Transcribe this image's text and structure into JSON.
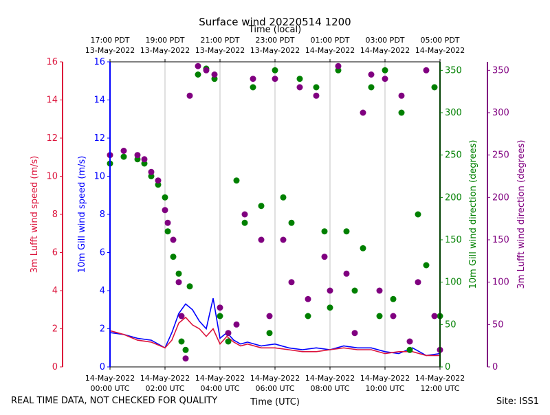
{
  "chart_data": {
    "type": "scatter",
    "title": "Surface wind 20220514 1200",
    "top_axis_label": "Time (local)",
    "xlabel": "Time (UTC)",
    "footer_left": "REAL TIME DATA, NOT CHECKED FOR QUALITY",
    "footer_right": "Site: ISS1",
    "x_range_hours_utc": [
      0,
      12
    ],
    "bottom_ticks": [
      {
        "h": 0,
        "l1": "14-May-2022",
        "l2": "00:00 UTC"
      },
      {
        "h": 2,
        "l1": "14-May-2022",
        "l2": "02:00 UTC"
      },
      {
        "h": 4,
        "l1": "14-May-2022",
        "l2": "04:00 UTC"
      },
      {
        "h": 6,
        "l1": "14-May-2022",
        "l2": "06:00 UTC"
      },
      {
        "h": 8,
        "l1": "14-May-2022",
        "l2": "08:00 UTC"
      },
      {
        "h": 10,
        "l1": "14-May-2022",
        "l2": "10:00 UTC"
      },
      {
        "h": 12,
        "l1": "14-May-2022",
        "l2": "12:00 UTC"
      }
    ],
    "top_ticks": [
      {
        "h": 0,
        "l1": "17:00 PDT",
        "l2": "13-May-2022"
      },
      {
        "h": 2,
        "l1": "19:00 PDT",
        "l2": "13-May-2022"
      },
      {
        "h": 4,
        "l1": "21:00 PDT",
        "l2": "13-May-2022"
      },
      {
        "h": 6,
        "l1": "23:00 PDT",
        "l2": "13-May-2022"
      },
      {
        "h": 8,
        "l1": "01:00 PDT",
        "l2": "14-May-2022"
      },
      {
        "h": 10,
        "l1": "03:00 PDT",
        "l2": "14-May-2022"
      },
      {
        "h": 12,
        "l1": "05:00 PDT",
        "l2": "14-May-2022"
      }
    ],
    "axes": {
      "lufft_speed": {
        "label": "3m Lufft wind speed (m/s)",
        "color": "#dc143c",
        "range": [
          0,
          16
        ],
        "ticks": [
          0,
          2,
          4,
          6,
          8,
          10,
          12,
          14,
          16
        ]
      },
      "gill_speed": {
        "label": "10m Gill wind speed (m/s)",
        "color": "#0000ff",
        "range": [
          0,
          16
        ],
        "ticks": [
          0,
          2,
          4,
          6,
          8,
          10,
          12,
          14,
          16
        ]
      },
      "gill_dir": {
        "label": "10m Gill wind direction (degrees)",
        "color": "#008000",
        "range": [
          0,
          360
        ],
        "ticks": [
          0,
          50,
          100,
          150,
          200,
          250,
          300,
          350
        ]
      },
      "lufft_dir": {
        "label": "3m Lufft wind direction (degrees)",
        "color": "#800080",
        "range": [
          0,
          360
        ],
        "ticks": [
          0,
          50,
          100,
          150,
          200,
          250,
          300,
          350
        ]
      }
    },
    "series": [
      {
        "name": "10m Gill wind speed",
        "type": "line",
        "axis": "gill_speed",
        "color": "#0000ff",
        "x": [
          0,
          0.5,
          1,
          1.5,
          2,
          2.25,
          2.5,
          2.75,
          3,
          3.25,
          3.5,
          3.75,
          4,
          4.25,
          4.5,
          4.75,
          5,
          5.5,
          6,
          6.5,
          7,
          7.5,
          8,
          8.5,
          9,
          9.5,
          10,
          10.5,
          11,
          11.5,
          12
        ],
        "y": [
          1.8,
          1.7,
          1.5,
          1.4,
          1.0,
          1.8,
          2.8,
          3.3,
          3.0,
          2.4,
          2.0,
          3.6,
          1.5,
          1.8,
          1.4,
          1.2,
          1.3,
          1.1,
          1.2,
          1.0,
          0.9,
          1.0,
          0.9,
          1.1,
          1.0,
          1.0,
          0.8,
          0.7,
          1.0,
          0.6,
          0.7
        ]
      },
      {
        "name": "3m Lufft wind speed",
        "type": "line",
        "axis": "lufft_speed",
        "color": "#dc143c",
        "x": [
          0,
          0.5,
          1,
          1.5,
          2,
          2.25,
          2.5,
          2.75,
          3,
          3.25,
          3.5,
          3.75,
          4,
          4.25,
          4.5,
          4.75,
          5,
          5.5,
          6,
          6.5,
          7,
          7.5,
          8,
          8.5,
          9,
          9.5,
          10,
          10.5,
          11,
          11.5,
          12
        ],
        "y": [
          1.9,
          1.7,
          1.4,
          1.3,
          1.0,
          1.4,
          2.3,
          2.6,
          2.2,
          2.0,
          1.6,
          2.0,
          1.2,
          1.6,
          1.3,
          1.1,
          1.2,
          1.0,
          1.0,
          0.9,
          0.8,
          0.8,
          0.9,
          1.0,
          0.9,
          0.9,
          0.7,
          0.8,
          0.8,
          0.6,
          0.6
        ]
      },
      {
        "name": "10m Gill wind direction",
        "type": "scatter",
        "axis": "gill_dir",
        "color": "#008000",
        "x": [
          0,
          0.5,
          1,
          1.25,
          1.5,
          1.75,
          2,
          2.1,
          2.3,
          2.5,
          2.6,
          2.75,
          2.9,
          3.2,
          3.5,
          3.8,
          4,
          4.3,
          4.6,
          4.9,
          5.2,
          5.5,
          5.8,
          6,
          6.3,
          6.6,
          6.9,
          7.2,
          7.5,
          7.8,
          8,
          8.3,
          8.6,
          8.9,
          9.2,
          9.5,
          9.8,
          10,
          10.3,
          10.6,
          10.9,
          11.2,
          11.5,
          11.8,
          12
        ],
        "y": [
          240,
          248,
          245,
          240,
          225,
          215,
          200,
          160,
          130,
          110,
          30,
          20,
          95,
          345,
          352,
          340,
          60,
          30,
          220,
          170,
          330,
          190,
          40,
          350,
          200,
          170,
          340,
          60,
          330,
          160,
          70,
          350,
          160,
          90,
          140,
          330,
          60,
          350,
          80,
          300,
          20,
          180,
          120,
          330,
          60
        ],
        "note": "dense scatter; values spread across 0-360"
      },
      {
        "name": "3m Lufft wind direction",
        "type": "scatter",
        "axis": "lufft_dir",
        "color": "#800080",
        "x": [
          0,
          0.5,
          1,
          1.25,
          1.5,
          1.75,
          2,
          2.1,
          2.3,
          2.5,
          2.6,
          2.75,
          2.9,
          3.2,
          3.5,
          3.8,
          4,
          4.3,
          4.6,
          4.9,
          5.2,
          5.5,
          5.8,
          6,
          6.3,
          6.6,
          6.9,
          7.2,
          7.5,
          7.8,
          8,
          8.3,
          8.6,
          8.9,
          9.2,
          9.5,
          9.8,
          10,
          10.3,
          10.6,
          10.9,
          11.2,
          11.5,
          11.8,
          12
        ],
        "y": [
          250,
          255,
          250,
          245,
          230,
          220,
          185,
          170,
          150,
          100,
          60,
          10,
          320,
          355,
          350,
          345,
          70,
          40,
          50,
          180,
          340,
          150,
          60,
          340,
          150,
          100,
          330,
          80,
          320,
          130,
          90,
          355,
          110,
          40,
          300,
          345,
          90,
          340,
          60,
          320,
          30,
          100,
          350,
          60,
          20
        ],
        "note": "dense scatter; values spread across 0-360"
      }
    ]
  }
}
